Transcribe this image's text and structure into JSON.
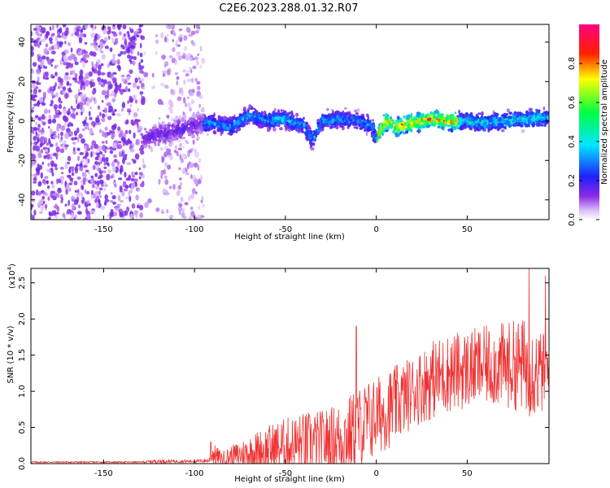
{
  "title": "C2E6.2023.288.01.32.R07",
  "colors": {
    "snr_line": "#ee3333",
    "axis": "#000000",
    "background": "#ffffff"
  },
  "chart_data": [
    {
      "type": "heatmap",
      "xlabel": "Height of straight line (km)",
      "ylabel": "Frequency (Hz)",
      "xlim": [
        -190,
        95
      ],
      "ylim": [
        -50,
        49
      ],
      "x_ticks": [
        -150,
        -100,
        -50,
        0,
        50
      ],
      "y_ticks": [
        -40,
        -20,
        0,
        20,
        40
      ],
      "colorbar": {
        "label": "Normalized spectral amplitude",
        "range": [
          0,
          1
        ],
        "ticks": [
          "0.0",
          "0.2",
          "0.4",
          "0.6",
          "0.8"
        ],
        "colormap": "rainbow (white→purple→blue→cyan→green→yellow→red→magenta)"
      },
      "ridge": {
        "description_points_x": [
          -125,
          -110,
          -100,
          -90,
          -80,
          -70,
          -60,
          -50,
          -45,
          -40,
          -35,
          -30,
          -20,
          -10,
          -3,
          0,
          5,
          10,
          20,
          30,
          40,
          50,
          60,
          70,
          80,
          95
        ],
        "description_points_y": [
          -8,
          -5,
          -2,
          -1,
          -3,
          3,
          0,
          1,
          -1,
          -2,
          -10,
          0,
          1,
          0,
          -2,
          -9,
          0,
          -3,
          -1,
          1,
          0,
          0,
          -1,
          0,
          1,
          2
        ],
        "peak_amplitude_region_x": [
          0,
          40
        ]
      }
    },
    {
      "type": "line",
      "xlabel": "Height of straight line (km)",
      "ylabel": "SNR (10 * v/v)",
      "y_multiplier": "(x10",
      "y_multiplier_exp": "4",
      "xlim": [
        -190,
        95
      ],
      "ylim": [
        0,
        2.7
      ],
      "x_ticks": [
        -150,
        -100,
        -50,
        0,
        50
      ],
      "y_ticks": [
        "0.0",
        "0.5",
        "1.0",
        "1.5",
        "2.0",
        "2.5"
      ],
      "envelope": {
        "x": [
          -190,
          -130,
          -120,
          -110,
          -100,
          -92,
          -90,
          -85,
          -80,
          -70,
          -60,
          -50,
          -40,
          -30,
          -20,
          -15,
          -10,
          -5,
          0,
          10,
          20,
          30,
          40,
          50,
          60,
          70,
          80,
          85,
          90,
          95
        ],
        "base": [
          0.02,
          0.02,
          0.03,
          0.03,
          0.03,
          0.04,
          0.12,
          0.06,
          0.08,
          0.12,
          0.15,
          0.2,
          0.22,
          0.25,
          0.3,
          0.35,
          0.45,
          0.5,
          0.6,
          0.75,
          0.95,
          1.1,
          1.2,
          1.25,
          1.3,
          1.3,
          1.3,
          1.25,
          1.2,
          1.2
        ],
        "amp": [
          0.01,
          0.01,
          0.03,
          0.02,
          0.02,
          0.03,
          0.15,
          0.1,
          0.15,
          0.25,
          0.35,
          0.4,
          0.45,
          0.45,
          0.5,
          0.55,
          0.55,
          0.6,
          0.55,
          0.55,
          0.5,
          0.55,
          0.55,
          0.55,
          0.55,
          0.6,
          0.65,
          0.7,
          0.6,
          0.5
        ]
      },
      "notable_peaks": [
        {
          "x": -91,
          "y": 0.3
        },
        {
          "x": -11,
          "y": 1.9
        },
        {
          "x": 84,
          "y": 2.7
        },
        {
          "x": 93,
          "y": 2.6
        }
      ]
    }
  ]
}
